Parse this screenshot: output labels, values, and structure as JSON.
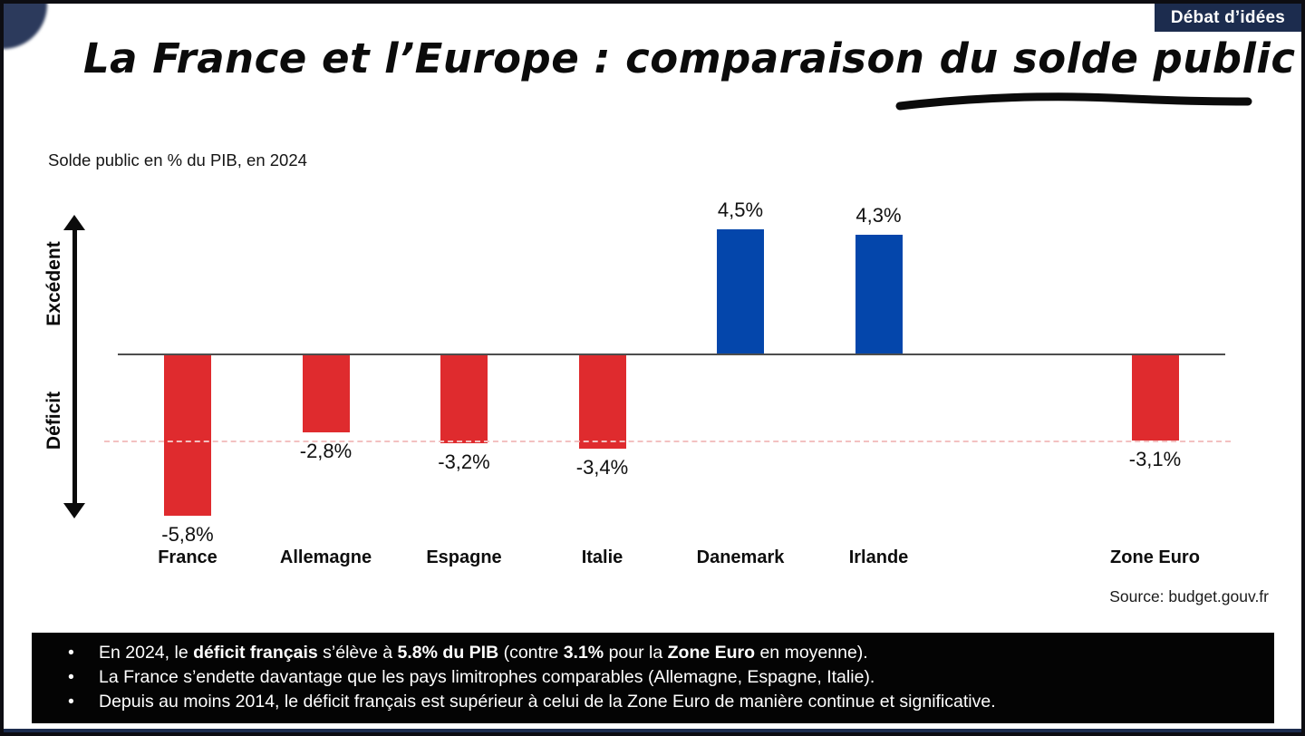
{
  "badge": {
    "label": "Débat d’idées"
  },
  "title": {
    "text": "La France et l’Europe : comparaison du solde public",
    "underlined_part": "du solde public"
  },
  "chart": {
    "subtitle": "Solde public en % du PIB, en 2024",
    "source": "Source: budget.gouv.fr",
    "axis": {
      "positive_label": "Excédent",
      "negative_label": "Déficit"
    }
  },
  "chart_data": {
    "type": "bar",
    "title": "La France et l’Europe : comparaison du solde public",
    "subtitle": "Solde public en % du PIB, en 2024",
    "categories": [
      "France",
      "Allemagne",
      "Espagne",
      "Italie",
      "Danemark",
      "Irlande",
      "Zone Euro"
    ],
    "values": [
      -5.8,
      -2.8,
      -3.2,
      -3.4,
      4.5,
      4.3,
      -3.1
    ],
    "labels": [
      "-5,8%",
      "-2,8%",
      "-3,2%",
      "-3,4%",
      "4,5%",
      "4,3%",
      "-3,1%"
    ],
    "ylabel": "Solde public en % du PIB",
    "ylim": [
      -6.5,
      5.5
    ],
    "grid": false,
    "axis_annotations": {
      "above_zero": "Excédent",
      "below_zero": "Déficit"
    },
    "reference_line": {
      "value": -3.1,
      "style": "dashed",
      "color": "#f3c1c1"
    },
    "colors": {
      "deficit": "#df2b2e",
      "surplus": "#0446ab"
    },
    "source": "Source: budget.gouv.fr"
  },
  "notes": {
    "bullets": [
      {
        "segments": [
          {
            "t": "En 2024, le ",
            "b": false
          },
          {
            "t": "déficit français",
            "b": true
          },
          {
            "t": " s’élève à ",
            "b": false
          },
          {
            "t": "5.8% du PIB",
            "b": true
          },
          {
            "t": " (contre ",
            "b": false
          },
          {
            "t": "3.1%",
            "b": true
          },
          {
            "t": " pour la ",
            "b": false
          },
          {
            "t": "Zone Euro",
            "b": true
          },
          {
            "t": " en moyenne).",
            "b": false
          }
        ]
      },
      {
        "segments": [
          {
            "t": "La France s’endette davantage que les pays limitrophes comparables (Allemagne, Espagne, Italie).",
            "b": false
          }
        ]
      },
      {
        "segments": [
          {
            "t": "Depuis au moins 2014, le déficit français est supérieur à celui de la Zone Euro de manière continue et significative.",
            "b": false
          }
        ]
      }
    ]
  }
}
